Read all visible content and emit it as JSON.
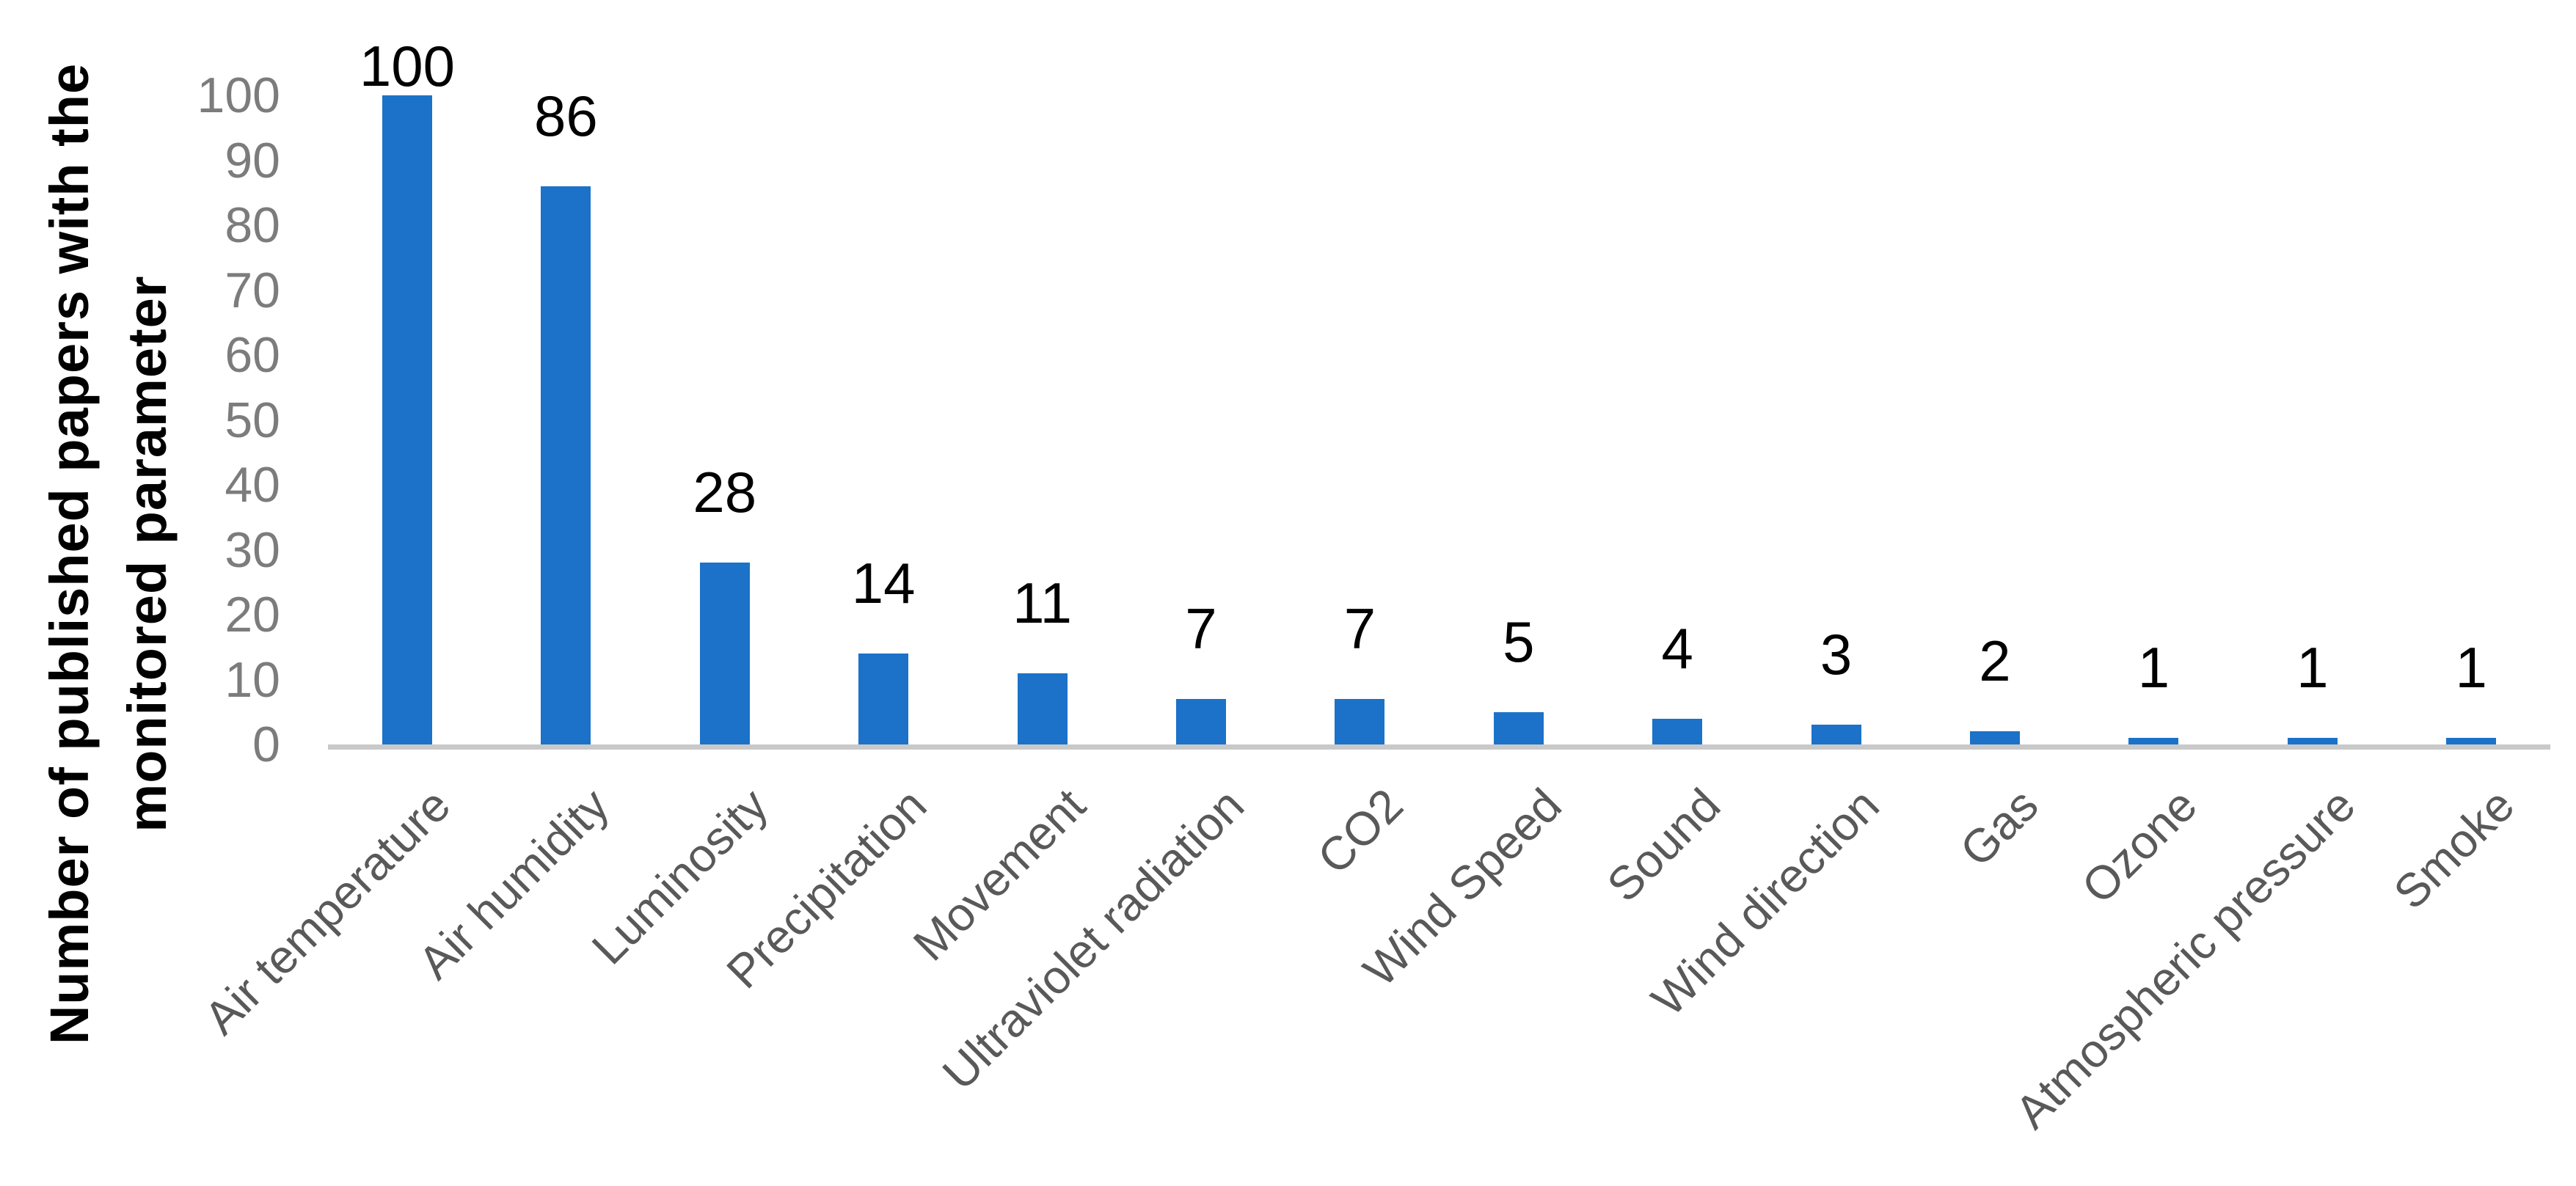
{
  "chart_data": {
    "type": "bar",
    "title": "",
    "categories": [
      "Air temperature",
      "Air humidity",
      "Luminosity",
      "Precipitation",
      "Movement",
      "Ultraviolet radiation",
      "CO2",
      "Wind Speed",
      "Sound",
      "Wind direction",
      "Gas",
      "Ozone",
      "Atmospheric pressure",
      "Smoke"
    ],
    "values": [
      100,
      86,
      28,
      14,
      11,
      7,
      7,
      5,
      4,
      3,
      2,
      1,
      1,
      1
    ],
    "data_labels": [
      "100",
      "86",
      "28",
      "14",
      "11",
      "7",
      "7",
      "5",
      "4",
      "3",
      "2",
      "1",
      "1",
      "1"
    ],
    "ylabel_line1": "Number of published papers with the",
    "ylabel_line2": "monitored parameter",
    "xlabel": "",
    "ylim": [
      0,
      100
    ],
    "yticks": [
      0,
      10,
      20,
      30,
      40,
      50,
      60,
      70,
      80,
      90,
      100
    ],
    "grid": false,
    "legend": "none",
    "colors": {
      "bar": "#1B72C8",
      "tick_labels": "#7C7C7C",
      "x_labels": "#595959",
      "data_labels": "#000000",
      "axis_line": "#C9C9C9"
    }
  }
}
